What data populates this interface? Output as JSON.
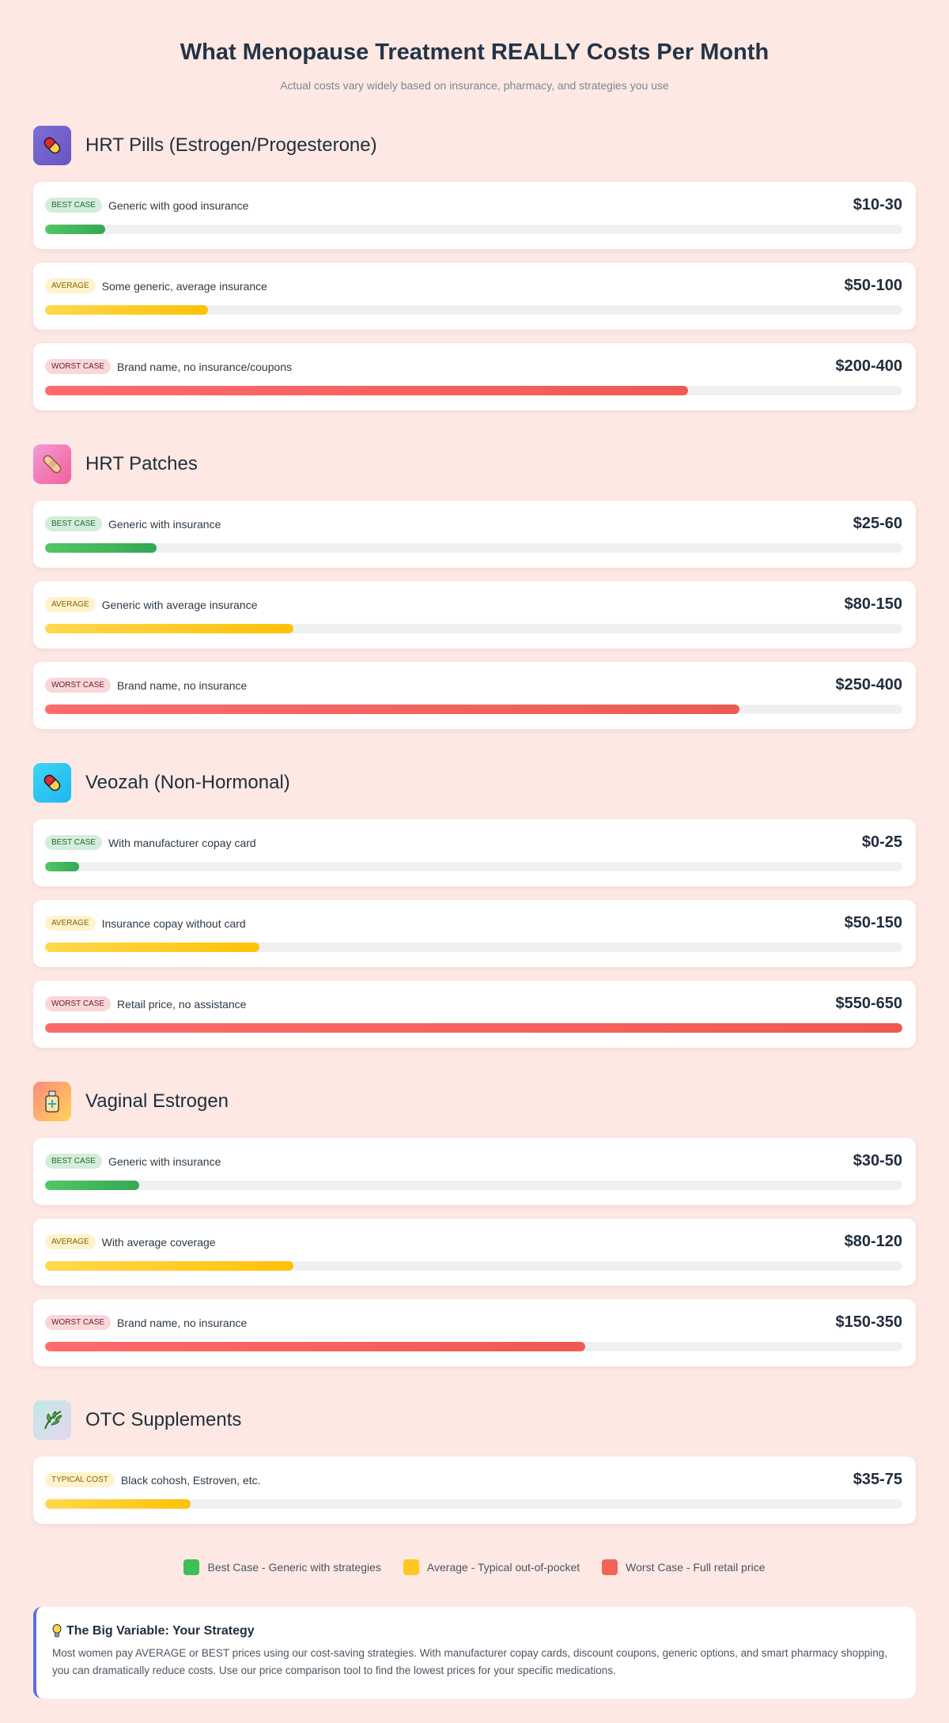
{
  "title": "What Menopause Treatment REALLY Costs Per Month",
  "subtitle": "Actual costs vary widely based on insurance, pharmacy, and strategies you use",
  "chart_data": {
    "type": "bar",
    "title": "What Menopause Treatment REALLY Costs Per Month",
    "unit": "USD per month",
    "sections": [
      {
        "name": "HRT Pills (Estrogen/Progesterone)",
        "icon": "pill-icon",
        "rows": [
          {
            "level": "best",
            "badge": "Best Case",
            "desc": "Generic with good insurance",
            "price": "$10-30",
            "fill": 7
          },
          {
            "level": "average",
            "badge": "Average",
            "desc": "Some generic, average insurance",
            "price": "$50-100",
            "fill": 19
          },
          {
            "level": "worst",
            "badge": "Worst Case",
            "desc": "Brand name, no insurance/coupons",
            "price": "$200-400",
            "fill": 75
          }
        ]
      },
      {
        "name": "HRT Patches",
        "icon": "bandage-icon",
        "rows": [
          {
            "level": "best",
            "badge": "Best Case",
            "desc": "Generic with insurance",
            "price": "$25-60",
            "fill": 13
          },
          {
            "level": "average",
            "badge": "Average",
            "desc": "Generic with average insurance",
            "price": "$80-150",
            "fill": 29
          },
          {
            "level": "worst",
            "badge": "Worst Case",
            "desc": "Brand name, no insurance",
            "price": "$250-400",
            "fill": 81
          }
        ]
      },
      {
        "name": "Veozah (Non-Hormonal)",
        "icon": "pill-icon",
        "rows": [
          {
            "level": "best",
            "badge": "Best Case",
            "desc": "With manufacturer copay card",
            "price": "$0-25",
            "fill": 4
          },
          {
            "level": "average",
            "badge": "Average",
            "desc": "Insurance copay without card",
            "price": "$50-150",
            "fill": 25
          },
          {
            "level": "worst",
            "badge": "Worst Case",
            "desc": "Retail price, no assistance",
            "price": "$550-650",
            "fill": 100
          }
        ]
      },
      {
        "name": "Vaginal Estrogen",
        "icon": "bottle-icon",
        "rows": [
          {
            "level": "best",
            "badge": "Best Case",
            "desc": "Generic with insurance",
            "price": "$30-50",
            "fill": 11
          },
          {
            "level": "average",
            "badge": "Average",
            "desc": "With average coverage",
            "price": "$80-120",
            "fill": 29
          },
          {
            "level": "worst",
            "badge": "Worst Case",
            "desc": "Brand name, no insurance",
            "price": "$150-350",
            "fill": 63
          }
        ]
      },
      {
        "name": "OTC Supplements",
        "icon": "herb-icon",
        "rows": [
          {
            "level": "average",
            "badge": "Typical Cost",
            "desc": "Black cohosh, Estroven, etc.",
            "price": "$35-75",
            "fill": 17
          }
        ]
      }
    ],
    "legend": [
      {
        "level": "best",
        "label": "Best Case - Generic with strategies",
        "color": "#3fbf57"
      },
      {
        "level": "average",
        "label": "Average - Typical out-of-pocket",
        "color": "#ffc720"
      },
      {
        "level": "worst",
        "label": "Worst Case - Full retail price",
        "color": "#f4625c"
      }
    ],
    "legend_placement": "bottom"
  },
  "colors": {
    "background": "#fde8e3",
    "accent": "#5b6ee1"
  },
  "note": {
    "icon": "lightbulb-icon",
    "title": "The Big Variable: Your Strategy",
    "text": "Most women pay AVERAGE or BEST prices using our cost-saving strategies. With manufacturer copay cards, discount coupons, generic options, and smart pharmacy shopping, you can dramatically reduce costs. Use our price comparison tool to find the lowest prices for your specific medications."
  }
}
